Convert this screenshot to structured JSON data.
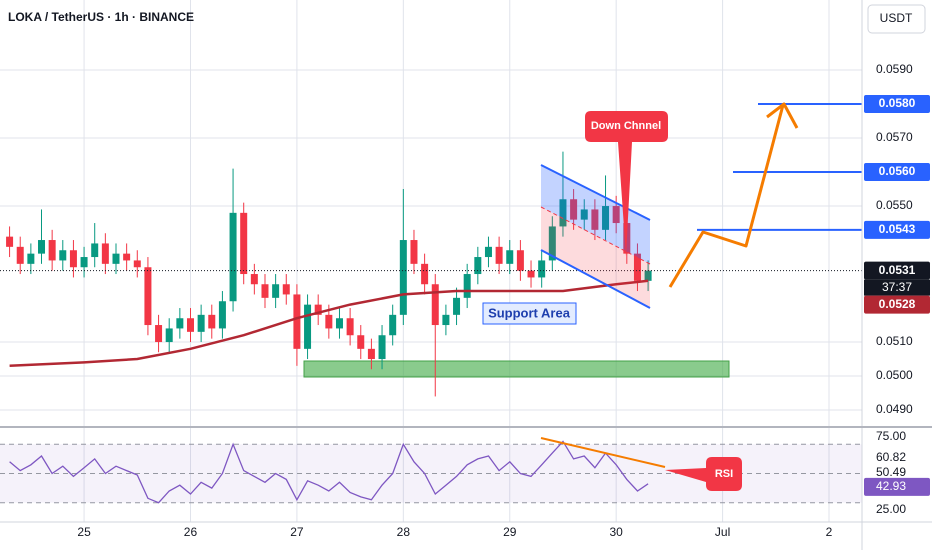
{
  "header": {
    "title": "LOKA / TetherUS · 1h · BINANCE",
    "currency": "USDT"
  },
  "chart_data": [
    {
      "type": "candlestick",
      "x": [
        24.3,
        24.4,
        24.5,
        24.6,
        24.7,
        24.8,
        24.9,
        25.0,
        25.1,
        25.2,
        25.3,
        25.4,
        25.5,
        25.6,
        25.7,
        25.8,
        25.9,
        26.0,
        26.1,
        26.2,
        26.3,
        26.4,
        26.5,
        26.6,
        26.7,
        26.8,
        26.9,
        27.0,
        27.1,
        27.2,
        27.3,
        27.4,
        27.5,
        27.6,
        27.7,
        27.8,
        27.9,
        28.0,
        28.1,
        28.2,
        28.3,
        28.4,
        28.5,
        28.6,
        28.7,
        28.8,
        28.9,
        29.0,
        29.1,
        29.2,
        29.3,
        29.4,
        29.5,
        29.6,
        29.7,
        29.8,
        29.9,
        30.0,
        30.1,
        30.2,
        30.3
      ],
      "open": [
        0.0541,
        0.0538,
        0.0533,
        0.0536,
        0.054,
        0.0534,
        0.0537,
        0.0532,
        0.0535,
        0.0539,
        0.0533,
        0.0536,
        0.0534,
        0.0532,
        0.0515,
        0.051,
        0.0514,
        0.0517,
        0.0513,
        0.0518,
        0.0514,
        0.0522,
        0.0548,
        0.053,
        0.0527,
        0.0523,
        0.0527,
        0.0524,
        0.0508,
        0.0521,
        0.0518,
        0.0514,
        0.0517,
        0.0512,
        0.0508,
        0.0505,
        0.0512,
        0.0518,
        0.054,
        0.0533,
        0.0527,
        0.0515,
        0.0518,
        0.0523,
        0.053,
        0.0535,
        0.0538,
        0.0533,
        0.0537,
        0.0531,
        0.0529,
        0.0534,
        0.0544,
        0.0552,
        0.0546,
        0.0549,
        0.0543,
        0.055,
        0.0545,
        0.0536,
        0.0528
      ],
      "high": [
        0.0544,
        0.0541,
        0.0539,
        0.0549,
        0.0543,
        0.054,
        0.054,
        0.0538,
        0.0545,
        0.0542,
        0.0539,
        0.0539,
        0.0537,
        0.0535,
        0.0518,
        0.0517,
        0.052,
        0.052,
        0.0521,
        0.0521,
        0.0525,
        0.0561,
        0.0551,
        0.0533,
        0.053,
        0.053,
        0.053,
        0.0527,
        0.0524,
        0.0524,
        0.0521,
        0.052,
        0.052,
        0.0515,
        0.0511,
        0.0515,
        0.0521,
        0.0555,
        0.0543,
        0.0536,
        0.053,
        0.0521,
        0.0526,
        0.0533,
        0.0538,
        0.0541,
        0.0541,
        0.054,
        0.054,
        0.0534,
        0.0537,
        0.0547,
        0.0566,
        0.0555,
        0.0552,
        0.0552,
        0.0559,
        0.0553,
        0.0548,
        0.0539,
        0.0534
      ],
      "low": [
        0.0535,
        0.053,
        0.053,
        0.0533,
        0.0531,
        0.0531,
        0.0529,
        0.0529,
        0.0532,
        0.053,
        0.053,
        0.0531,
        0.0529,
        0.0512,
        0.0507,
        0.0507,
        0.0511,
        0.051,
        0.051,
        0.0511,
        0.0511,
        0.0519,
        0.0527,
        0.0524,
        0.052,
        0.052,
        0.0521,
        0.0503,
        0.0505,
        0.0515,
        0.0511,
        0.0511,
        0.0509,
        0.0505,
        0.0502,
        0.0502,
        0.0509,
        0.0515,
        0.053,
        0.0524,
        0.0494,
        0.0512,
        0.0515,
        0.052,
        0.0527,
        0.0532,
        0.053,
        0.053,
        0.0528,
        0.0526,
        0.0526,
        0.0531,
        0.0541,
        0.0543,
        0.0543,
        0.054,
        0.054,
        0.0542,
        0.0533,
        0.0525,
        0.0525
      ],
      "close": [
        0.0538,
        0.0533,
        0.0536,
        0.054,
        0.0534,
        0.0537,
        0.0532,
        0.0535,
        0.0539,
        0.0533,
        0.0536,
        0.0534,
        0.0532,
        0.0515,
        0.051,
        0.0514,
        0.0517,
        0.0513,
        0.0518,
        0.0514,
        0.0522,
        0.0548,
        0.053,
        0.0527,
        0.0523,
        0.0527,
        0.0524,
        0.0508,
        0.0521,
        0.0518,
        0.0514,
        0.0517,
        0.0512,
        0.0508,
        0.0505,
        0.0512,
        0.0518,
        0.054,
        0.0533,
        0.0527,
        0.0515,
        0.0518,
        0.0523,
        0.053,
        0.0535,
        0.0538,
        0.0533,
        0.0537,
        0.0531,
        0.0529,
        0.0534,
        0.0544,
        0.0552,
        0.0546,
        0.0549,
        0.0543,
        0.055,
        0.0545,
        0.0536,
        0.0528,
        0.0531
      ],
      "colors": {
        "up": "#089981",
        "down": "#f23645"
      },
      "ma": {
        "x": [
          24.3,
          25.0,
          25.5,
          26.0,
          26.5,
          27.0,
          27.5,
          28.0,
          28.5,
          29.0,
          29.5,
          30.0,
          30.3
        ],
        "values": [
          0.0503,
          0.0504,
          0.0505,
          0.0508,
          0.0512,
          0.0517,
          0.0521,
          0.0524,
          0.0525,
          0.0525,
          0.0525,
          0.0527,
          0.0528
        ],
        "color": "#b22833"
      },
      "xlim": [
        24.21,
        32.31
      ],
      "xticks": [
        25,
        26,
        27,
        28,
        29,
        30,
        {
          "value": 31,
          "label": "Jul"
        },
        {
          "value": 32,
          "label": "2"
        }
      ],
      "ylim": [
        0.04856,
        0.06106
      ],
      "yticks": [
        {
          "value": 0.059,
          "label": "0.0590"
        },
        {
          "value": 0.057,
          "label": "0.0570"
        },
        {
          "value": 0.055,
          "label": "0.0550"
        },
        {
          "value": 0.051,
          "label": "0.0510"
        },
        {
          "value": 0.05,
          "label": "0.0500"
        },
        {
          "value": 0.049,
          "label": "0.0490"
        }
      ],
      "levels": [
        {
          "value": 0.058,
          "label": "0.0580"
        },
        {
          "value": 0.056,
          "label": "0.0560"
        },
        0.0543
      ],
      "level_color": "#2962ff",
      "countdown": "37:37",
      "annotations": [
        "Down Chnnel",
        "Support Area"
      ],
      "grid": true
    },
    {
      "type": "line",
      "x": [
        24.3,
        24.4,
        24.5,
        24.6,
        24.7,
        24.8,
        24.9,
        25.0,
        25.1,
        25.2,
        25.3,
        25.4,
        25.5,
        25.6,
        25.7,
        25.8,
        25.9,
        26.0,
        26.1,
        26.2,
        26.3,
        26.4,
        26.5,
        26.6,
        26.7,
        26.8,
        26.9,
        27.0,
        27.1,
        27.2,
        27.3,
        27.4,
        27.5,
        27.6,
        27.7,
        27.8,
        27.9,
        28.0,
        28.1,
        28.2,
        28.3,
        28.4,
        28.5,
        28.6,
        28.7,
        28.8,
        28.9,
        29.0,
        29.1,
        29.2,
        29.3,
        29.4,
        29.5,
        29.6,
        29.7,
        29.8,
        29.9,
        30.0,
        30.1,
        30.2,
        30.3
      ],
      "values": [
        58,
        52,
        56,
        62,
        50,
        55,
        48,
        54,
        60,
        50,
        55,
        52,
        49,
        33,
        30,
        38,
        42,
        36,
        44,
        40,
        50,
        70,
        52,
        48,
        44,
        50,
        46,
        32,
        45,
        42,
        38,
        44,
        37,
        34,
        32,
        42,
        50,
        70,
        58,
        50,
        36,
        42,
        48,
        56,
        60,
        62,
        52,
        58,
        50,
        48,
        56,
        64,
        72,
        60,
        62,
        54,
        64,
        56,
        46,
        38,
        42.93
      ],
      "color": "#7e57c2",
      "ylim": [
        16.8,
        79.8
      ],
      "yticks": [
        {
          "value": 75,
          "label": "75.00"
        },
        {
          "value": 25,
          "label": "25.00"
        }
      ],
      "levels": [
        60.82,
        50.49
      ],
      "annotations": [
        "RSI"
      ]
    }
  ]
}
